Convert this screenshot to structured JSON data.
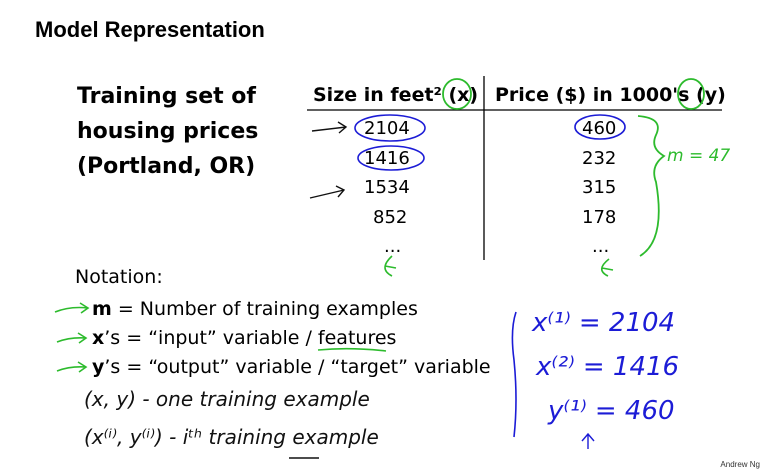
{
  "title": "Model Representation",
  "left_heading": {
    "line1": "Training set of",
    "line2": "housing prices",
    "line3": "(Portland, OR)"
  },
  "table": {
    "headers": [
      "Size in feet² (x)",
      "Price ($) in 1000's (y)"
    ],
    "rows": [
      [
        "2104",
        "460"
      ],
      [
        "1416",
        "232"
      ],
      [
        "1534",
        "315"
      ],
      [
        "852",
        "178"
      ],
      [
        "...",
        "..."
      ]
    ]
  },
  "annotation_m": "m = 47",
  "notation": {
    "heading": "Notation:",
    "items": [
      {
        "symbol": "m",
        "text": " = Number of training examples"
      },
      {
        "symbol": "x",
        "text": "’s = “input” variable / features"
      },
      {
        "symbol": "y",
        "text": "’s = “output” variable / “target” variable"
      }
    ]
  },
  "handwritten": {
    "one_example": "(x, y) - one training example",
    "ith_example": "(x⁽ⁱ⁾, y⁽ⁱ⁾) - iᵗʰ training example",
    "x1": "x⁽¹⁾ = 2104",
    "x2": "x⁽²⁾ = 1416",
    "y1": "y⁽¹⁾ = 460"
  },
  "footer": "Andrew Ng",
  "colors": {
    "ink_green": "#2dbb2d",
    "ink_blue": "#1c1cd6",
    "text": "#000000"
  }
}
